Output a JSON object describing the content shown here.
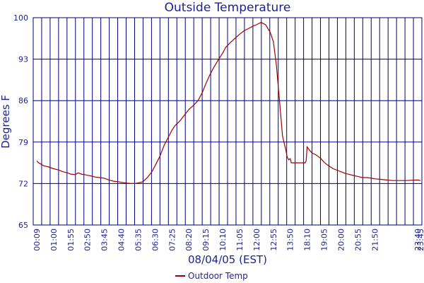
{
  "chart_data": {
    "type": "line",
    "title": "Outside Temperature",
    "xlabel": "08/04/05 (EST)",
    "ylabel": "Degrees F",
    "ylim": [
      65,
      100
    ],
    "yticks": [
      "65",
      "72",
      "79",
      "86",
      "93",
      "100"
    ],
    "x_tick_labels": [
      "00:09",
      "01:00",
      "01:55",
      "02:50",
      "03:45",
      "04:40",
      "05:35",
      "06:30",
      "07:25",
      "08:20",
      "09:15",
      "10:10",
      "11:05",
      "12:00",
      "12:55",
      "13:50",
      "18:10",
      "19:05",
      "20:00",
      "20:55",
      "21:50",
      "23:40",
      "23:45"
    ],
    "grid": true,
    "legend_position": "bottom-center",
    "colors": {
      "series": "#a00000",
      "grid": "#000080",
      "text": "#1f1f8f"
    },
    "series": [
      {
        "name": "Outdoor Temp",
        "x": [
          "00:09",
          "00:15",
          "00:30",
          "00:45",
          "01:00",
          "01:15",
          "01:30",
          "01:45",
          "01:55",
          "02:10",
          "02:20",
          "02:30",
          "02:40",
          "02:50",
          "03:00",
          "03:15",
          "03:30",
          "03:45",
          "04:00",
          "04:15",
          "04:30",
          "04:40",
          "04:55",
          "05:10",
          "05:25",
          "05:35",
          "05:50",
          "06:05",
          "06:20",
          "06:30",
          "06:45",
          "07:00",
          "07:15",
          "07:25",
          "07:35",
          "07:50",
          "08:05",
          "08:20",
          "08:35",
          "08:50",
          "09:05",
          "09:15",
          "09:25",
          "09:40",
          "09:55",
          "10:10",
          "10:20",
          "10:35",
          "10:50",
          "11:05",
          "11:20",
          "11:35",
          "11:50",
          "12:00",
          "12:15",
          "12:30",
          "12:45",
          "12:55",
          "13:05",
          "13:15",
          "13:25",
          "13:35",
          "13:40",
          "13:45",
          "13:50",
          "13:55",
          "14:00",
          "14:05",
          "17:40",
          "17:55",
          "18:10",
          "18:15",
          "18:25",
          "18:40",
          "18:55",
          "19:05",
          "19:20",
          "19:35",
          "19:50",
          "20:00",
          "20:15",
          "20:30",
          "20:45",
          "20:55",
          "21:10",
          "21:25",
          "21:40",
          "21:50",
          "22:05",
          "22:20",
          "22:35",
          "23:10",
          "23:40",
          "23:45"
        ],
        "values": [
          75.8,
          75.5,
          75.0,
          74.8,
          74.5,
          74.3,
          74.0,
          73.8,
          73.6,
          73.5,
          73.8,
          73.6,
          73.5,
          73.4,
          73.3,
          73.1,
          73.0,
          72.9,
          72.6,
          72.4,
          72.3,
          72.2,
          72.1,
          72.0,
          72.0,
          72.1,
          72.3,
          73.0,
          74.0,
          75.0,
          76.5,
          78.5,
          80.0,
          81.0,
          81.8,
          82.5,
          83.5,
          84.5,
          85.2,
          86.0,
          87.5,
          88.8,
          90.0,
          91.5,
          92.8,
          94.0,
          95.0,
          95.8,
          96.5,
          97.2,
          97.8,
          98.2,
          98.6,
          98.8,
          99.2,
          98.8,
          97.5,
          96.0,
          92.0,
          86.0,
          80.0,
          77.8,
          76.5,
          76.0,
          76.2,
          76.0,
          75.8,
          75.5,
          75.5,
          75.8,
          78.2,
          77.8,
          77.2,
          76.8,
          76.2,
          75.6,
          75.0,
          74.5,
          74.2,
          74.0,
          73.7,
          73.5,
          73.3,
          73.2,
          73.0,
          73.0,
          72.9,
          72.8,
          72.7,
          72.6,
          72.5,
          72.5,
          72.6,
          72.5
        ]
      }
    ]
  }
}
